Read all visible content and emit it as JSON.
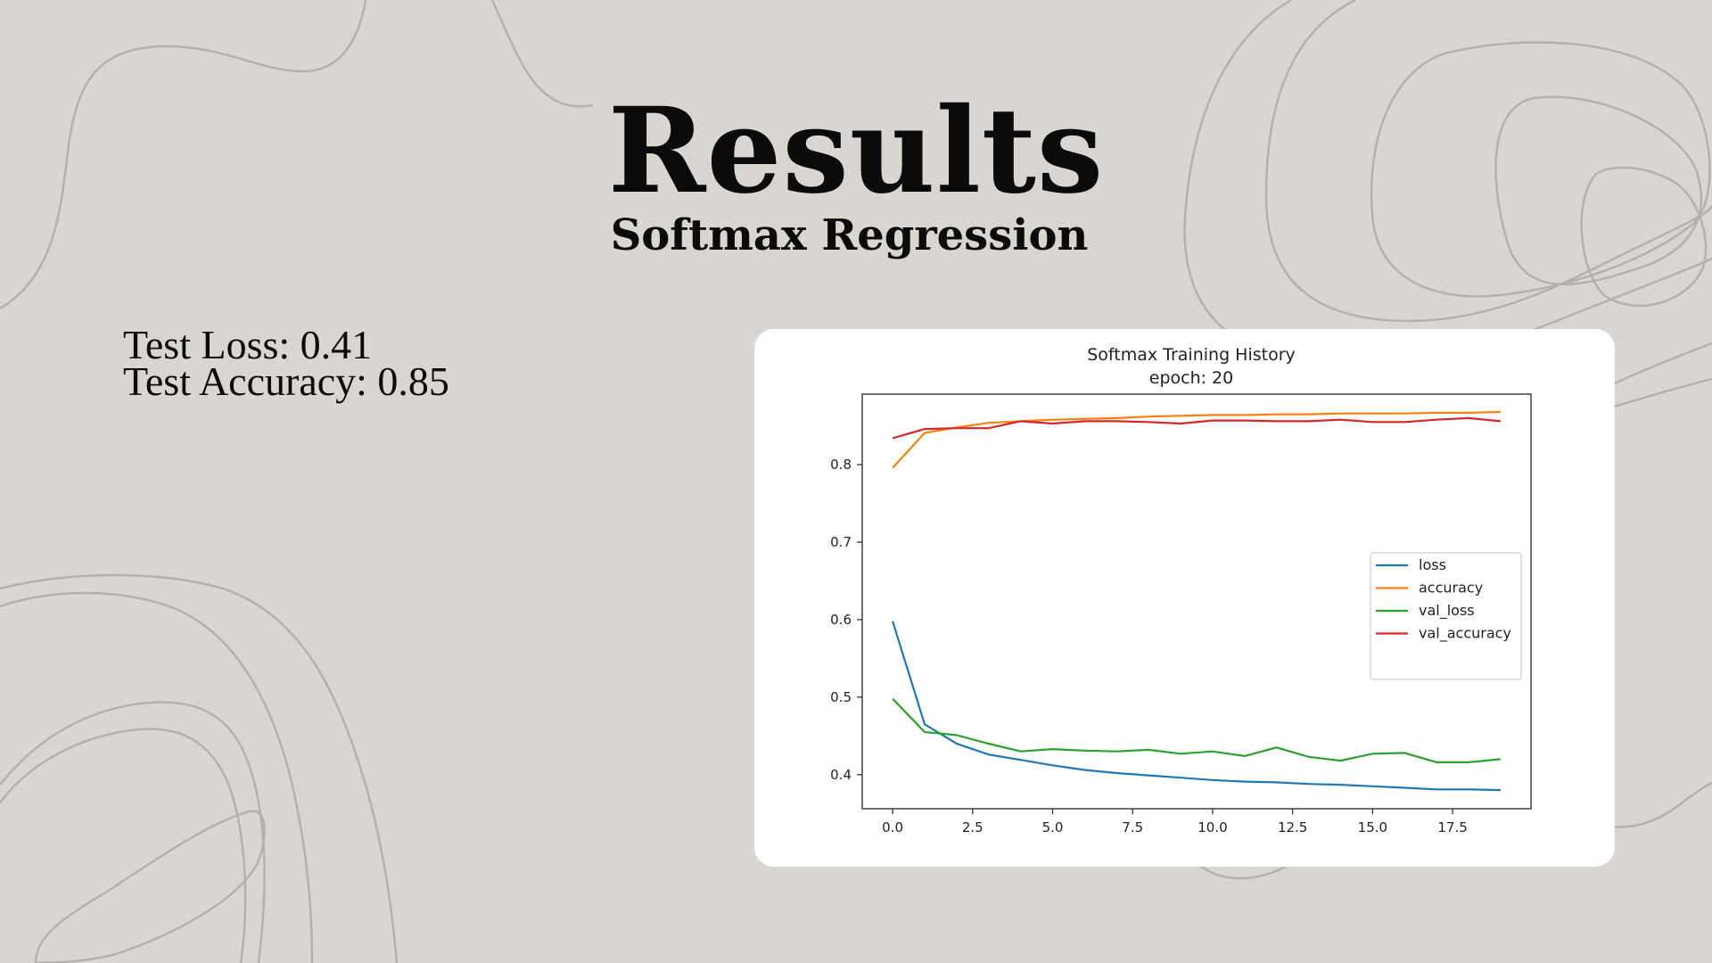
{
  "slide": {
    "title": "Results",
    "subtitle": "Softmax Regression",
    "test_loss": "Test Loss: 0.41",
    "test_accuracy": "Test Accuracy: 0.85"
  },
  "chart_data": {
    "type": "line",
    "title": "Softmax Training History",
    "subtitle": "epoch: 20",
    "xlim": [
      -0.95,
      19.95
    ],
    "ylim": [
      0.356,
      0.891
    ],
    "xticks": [
      "0.0",
      "2.5",
      "5.0",
      "7.5",
      "10.0",
      "12.5",
      "15.0",
      "17.5"
    ],
    "yticks": [
      "0.4",
      "0.5",
      "0.6",
      "0.7",
      "0.8"
    ],
    "grid": false,
    "legend_position": "center-right",
    "x": [
      0,
      1,
      2,
      3,
      4,
      5,
      6,
      7,
      8,
      9,
      10,
      11,
      12,
      13,
      14,
      15,
      16,
      17,
      18,
      19
    ],
    "series": [
      {
        "name": "loss",
        "color": "#1f77b4",
        "values": [
          0.598,
          0.465,
          0.44,
          0.426,
          0.419,
          0.412,
          0.406,
          0.402,
          0.399,
          0.396,
          0.393,
          0.391,
          0.39,
          0.388,
          0.387,
          0.385,
          0.383,
          0.381,
          0.381,
          0.38
        ]
      },
      {
        "name": "accuracy",
        "color": "#ff7f0e",
        "values": [
          0.796,
          0.841,
          0.848,
          0.854,
          0.856,
          0.858,
          0.859,
          0.86,
          0.862,
          0.863,
          0.864,
          0.864,
          0.865,
          0.865,
          0.866,
          0.866,
          0.866,
          0.867,
          0.867,
          0.868
        ]
      },
      {
        "name": "val_loss",
        "color": "#2ca02c",
        "values": [
          0.498,
          0.455,
          0.451,
          0.44,
          0.43,
          0.433,
          0.431,
          0.43,
          0.432,
          0.427,
          0.43,
          0.424,
          0.435,
          0.423,
          0.418,
          0.427,
          0.428,
          0.416,
          0.416,
          0.42
        ]
      },
      {
        "name": "val_accuracy",
        "color": "#d62728",
        "values": [
          0.834,
          0.846,
          0.847,
          0.847,
          0.856,
          0.853,
          0.856,
          0.856,
          0.855,
          0.853,
          0.857,
          0.857,
          0.856,
          0.856,
          0.858,
          0.855,
          0.855,
          0.858,
          0.86,
          0.856
        ]
      }
    ]
  }
}
